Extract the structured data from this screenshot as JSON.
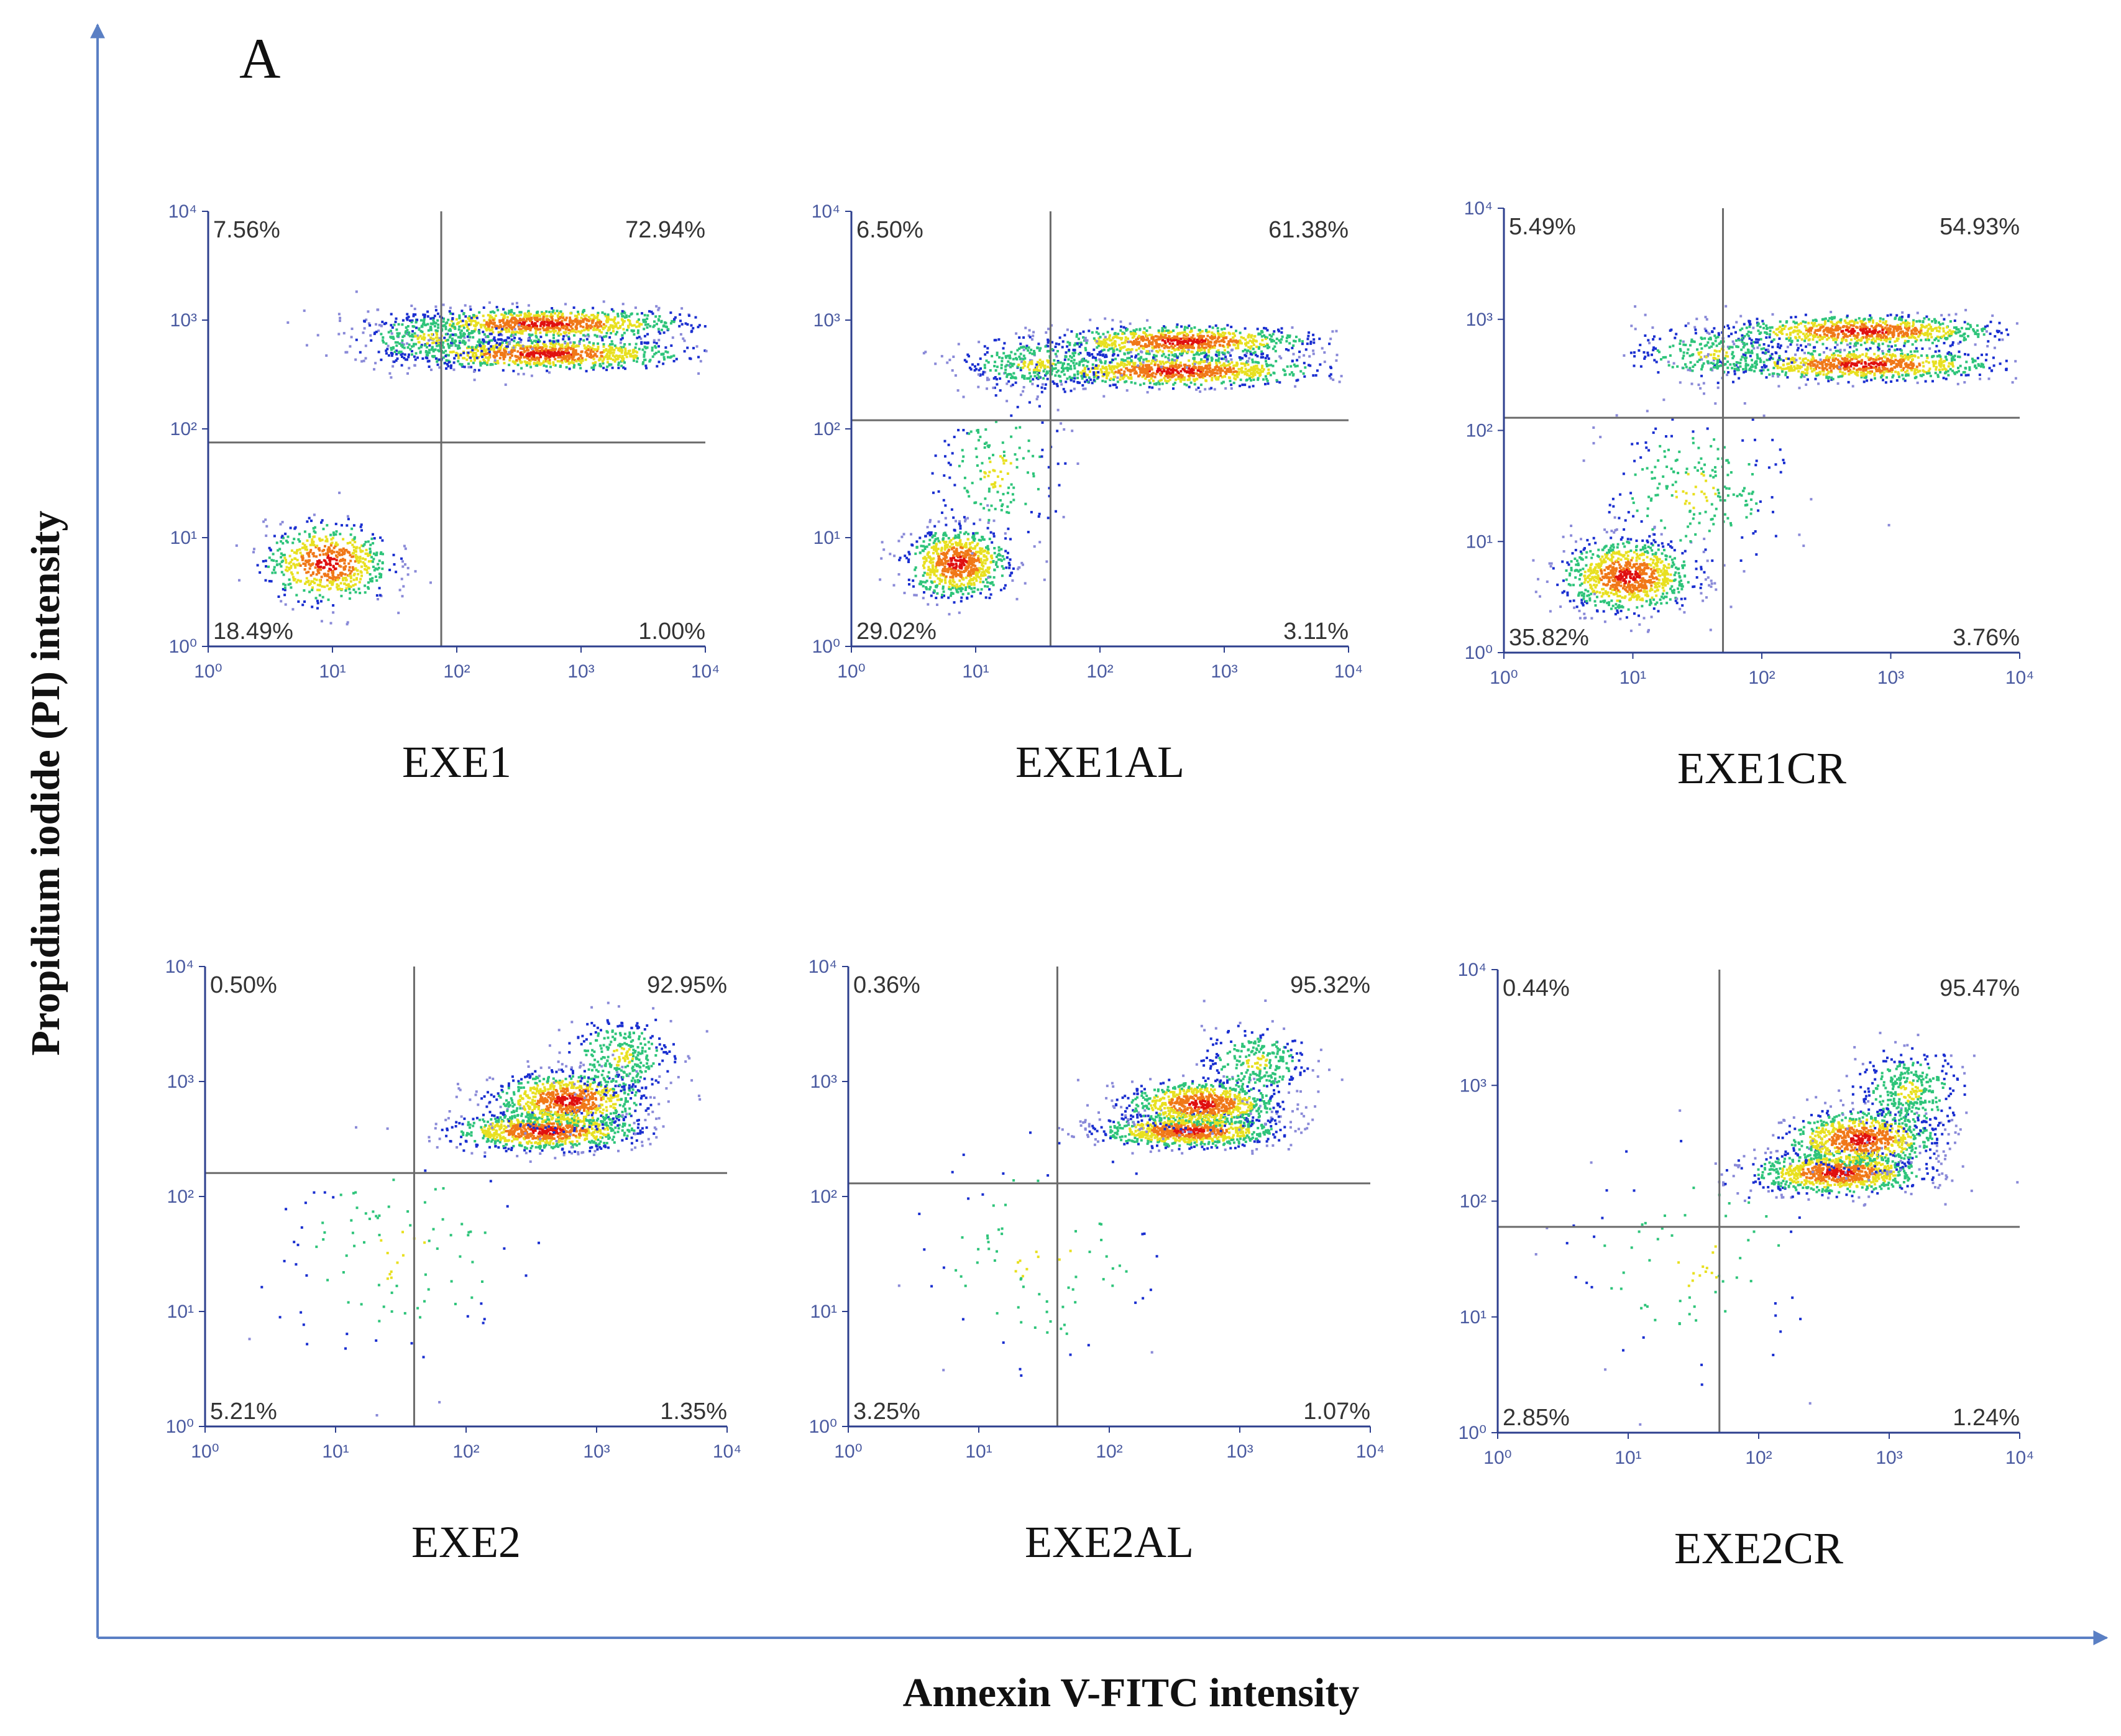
{
  "figure": {
    "panel_letter": "A",
    "y_axis_title": "Propidium iodide (PI) intensity",
    "x_axis_title": "Annexin V-FITC intensity",
    "colors": {
      "axis_arrow": "#5a7fc4",
      "plot_axis": "#2d3f8e",
      "gate_line": "#6a6a6a",
      "density_low": "#1a2fd0",
      "density_mid": "#2ec47a",
      "density_midhigh": "#e8e020",
      "density_high": "#f07818",
      "density_peak": "#e01010",
      "scatter": "#8a8ad8"
    }
  },
  "chart_data": [
    {
      "type": "scatter",
      "name": "EXE1",
      "x_scale": "log",
      "y_scale": "log",
      "xlim": [
        1,
        10000
      ],
      "ylim": [
        1,
        10000
      ],
      "x_tick_labels": [
        "10⁰",
        "10¹",
        "10²",
        "10³",
        "10⁴"
      ],
      "y_tick_labels": [
        "10⁰",
        "10¹",
        "10²",
        "10³",
        "10⁴"
      ],
      "gate": {
        "x": 75,
        "y": 75
      },
      "quadrants": {
        "upper_left": "7.56%",
        "upper_right": "72.94%",
        "lower_left": "18.49%",
        "lower_right": "1.00%"
      },
      "populations": [
        {
          "x": 500,
          "y": 500,
          "sx": 0.55,
          "sy": 0.07,
          "weight": 1.0
        },
        {
          "x": 500,
          "y": 950,
          "sx": 0.55,
          "sy": 0.07,
          "weight": 1.0
        },
        {
          "x": 60,
          "y": 700,
          "sx": 0.3,
          "sy": 0.12,
          "weight": 0.35
        },
        {
          "x": 9,
          "y": 6,
          "sx": 0.25,
          "sy": 0.18,
          "weight": 0.7
        }
      ]
    },
    {
      "type": "scatter",
      "name": "EXE1AL",
      "x_scale": "log",
      "y_scale": "log",
      "xlim": [
        1,
        10000
      ],
      "ylim": [
        1,
        10000
      ],
      "x_tick_labels": [
        "10⁰",
        "10¹",
        "10²",
        "10³",
        "10⁴"
      ],
      "y_tick_labels": [
        "10⁰",
        "10¹",
        "10²",
        "10³",
        "10⁴"
      ],
      "gate": {
        "x": 40,
        "y": 120
      },
      "quadrants": {
        "upper_left": "6.50%",
        "upper_right": "61.38%",
        "lower_left": "29.02%",
        "lower_right": "3.11%"
      },
      "populations": [
        {
          "x": 400,
          "y": 350,
          "sx": 0.55,
          "sy": 0.07,
          "weight": 1.0
        },
        {
          "x": 450,
          "y": 650,
          "sx": 0.5,
          "sy": 0.07,
          "weight": 0.9
        },
        {
          "x": 30,
          "y": 400,
          "sx": 0.3,
          "sy": 0.12,
          "weight": 0.35
        },
        {
          "x": 7,
          "y": 6,
          "sx": 0.2,
          "sy": 0.16,
          "weight": 0.85
        },
        {
          "x": 15,
          "y": 40,
          "sx": 0.25,
          "sy": 0.35,
          "weight": 0.2
        }
      ]
    },
    {
      "type": "scatter",
      "name": "EXE1CR",
      "x_scale": "log",
      "y_scale": "log",
      "xlim": [
        1,
        10000
      ],
      "ylim": [
        1,
        10000
      ],
      "x_tick_labels": [
        "10⁰",
        "10¹",
        "10²",
        "10³",
        "10⁴"
      ],
      "y_tick_labels": [
        "10⁰",
        "10¹",
        "10²",
        "10³",
        "10⁴"
      ],
      "gate": {
        "x": 50,
        "y": 130
      },
      "quadrants": {
        "upper_left": "5.49%",
        "upper_right": "54.93%",
        "lower_left": "35.82%",
        "lower_right": "3.76%"
      },
      "populations": [
        {
          "x": 600,
          "y": 400,
          "sx": 0.5,
          "sy": 0.07,
          "weight": 0.9
        },
        {
          "x": 600,
          "y": 800,
          "sx": 0.5,
          "sy": 0.07,
          "weight": 0.9
        },
        {
          "x": 40,
          "y": 500,
          "sx": 0.3,
          "sy": 0.12,
          "weight": 0.3
        },
        {
          "x": 9,
          "y": 5,
          "sx": 0.25,
          "sy": 0.16,
          "weight": 1.0
        },
        {
          "x": 30,
          "y": 30,
          "sx": 0.35,
          "sy": 0.35,
          "weight": 0.25
        }
      ]
    },
    {
      "type": "scatter",
      "name": "EXE2",
      "x_scale": "log",
      "y_scale": "log",
      "xlim": [
        1,
        10000
      ],
      "ylim": [
        1,
        10000
      ],
      "x_tick_labels": [
        "10⁰",
        "10¹",
        "10²",
        "10³",
        "10⁴"
      ],
      "y_tick_labels": [
        "10⁰",
        "10¹",
        "10²",
        "10³",
        "10⁴"
      ],
      "gate": {
        "x": 40,
        "y": 160
      },
      "quadrants": {
        "upper_left": "0.50%",
        "upper_right": "92.95%",
        "lower_left": "5.21%",
        "lower_right": "1.35%"
      },
      "populations": [
        {
          "x": 400,
          "y": 380,
          "sx": 0.35,
          "sy": 0.08,
          "weight": 1.0
        },
        {
          "x": 600,
          "y": 700,
          "sx": 0.28,
          "sy": 0.12,
          "weight": 0.9
        },
        {
          "x": 1500,
          "y": 1700,
          "sx": 0.2,
          "sy": 0.18,
          "weight": 0.35
        },
        {
          "x": 30,
          "y": 30,
          "sx": 0.5,
          "sy": 0.5,
          "weight": 0.12
        }
      ]
    },
    {
      "type": "scatter",
      "name": "EXE2AL",
      "x_scale": "log",
      "y_scale": "log",
      "xlim": [
        1,
        10000
      ],
      "ylim": [
        1,
        10000
      ],
      "x_tick_labels": [
        "10⁰",
        "10¹",
        "10²",
        "10³",
        "10⁴"
      ],
      "y_tick_labels": [
        "10⁰",
        "10¹",
        "10²",
        "10³",
        "10⁴"
      ],
      "gate": {
        "x": 40,
        "y": 130
      },
      "quadrants": {
        "upper_left": "0.36%",
        "upper_right": "95.32%",
        "lower_left": "3.25%",
        "lower_right": "1.07%"
      },
      "populations": [
        {
          "x": 400,
          "y": 380,
          "sx": 0.33,
          "sy": 0.07,
          "weight": 1.0
        },
        {
          "x": 500,
          "y": 650,
          "sx": 0.28,
          "sy": 0.1,
          "weight": 0.9
        },
        {
          "x": 1300,
          "y": 1500,
          "sx": 0.2,
          "sy": 0.15,
          "weight": 0.3
        },
        {
          "x": 30,
          "y": 30,
          "sx": 0.5,
          "sy": 0.5,
          "weight": 0.1
        }
      ]
    },
    {
      "type": "scatter",
      "name": "EXE2CR",
      "x_scale": "log",
      "y_scale": "log",
      "xlim": [
        1,
        10000
      ],
      "ylim": [
        1,
        10000
      ],
      "x_tick_labels": [
        "10⁰",
        "10¹",
        "10²",
        "10³",
        "10⁴"
      ],
      "y_tick_labels": [
        "10⁰",
        "10¹",
        "10²",
        "10³",
        "10⁴"
      ],
      "gate": {
        "x": 50,
        "y": 60
      },
      "quadrants": {
        "upper_left": "0.44%",
        "upper_right": "95.47%",
        "lower_left": "2.85%",
        "lower_right": "1.24%"
      },
      "populations": [
        {
          "x": 400,
          "y": 180,
          "sx": 0.32,
          "sy": 0.09,
          "weight": 1.0
        },
        {
          "x": 600,
          "y": 350,
          "sx": 0.28,
          "sy": 0.12,
          "weight": 0.9
        },
        {
          "x": 1400,
          "y": 900,
          "sx": 0.2,
          "sy": 0.18,
          "weight": 0.4
        },
        {
          "x": 30,
          "y": 30,
          "sx": 0.5,
          "sy": 0.5,
          "weight": 0.1
        }
      ]
    }
  ]
}
